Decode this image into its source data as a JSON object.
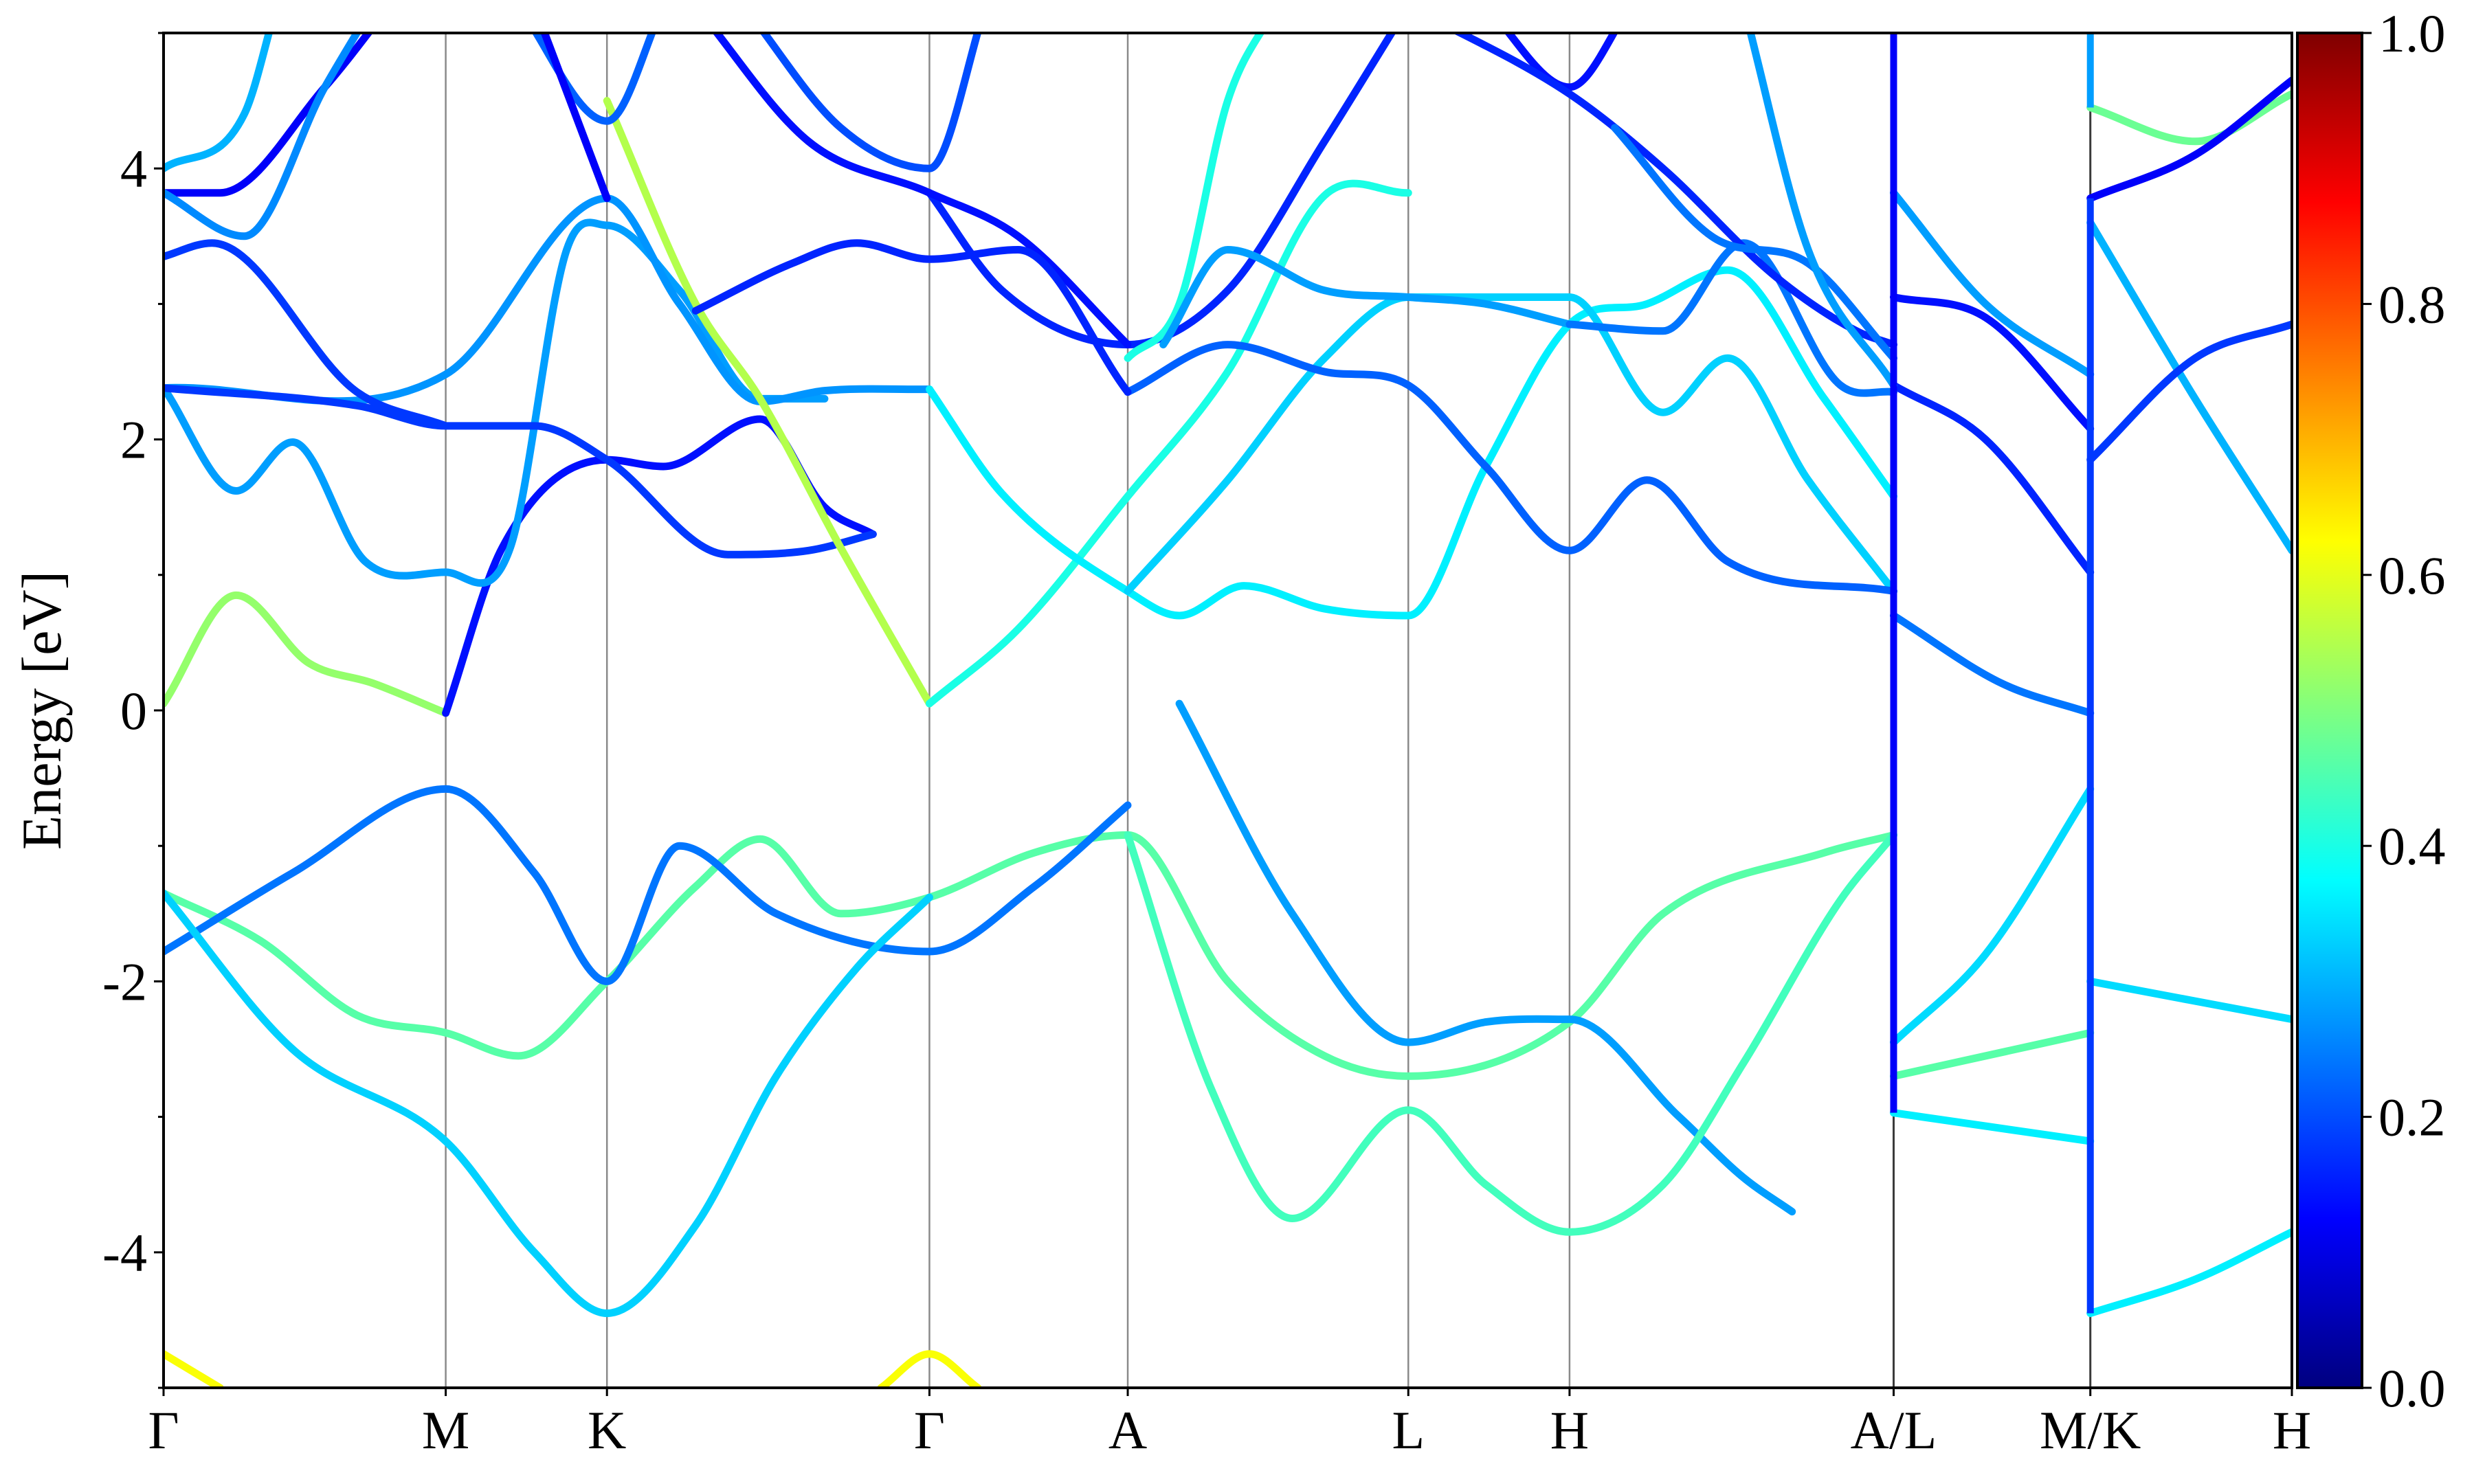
{
  "chart_data": {
    "type": "line",
    "title": "",
    "xlabel": "",
    "ylabel": "Energy [eV]",
    "ylim": [
      -5,
      5
    ],
    "yticks": [
      -4,
      -2,
      0,
      2,
      4
    ],
    "ytick_labels": [
      "-4",
      "-2",
      "0",
      "2",
      "4"
    ],
    "x_range": [
      0,
      13.2
    ],
    "kpoints": [
      {
        "label": "Γ",
        "x": 0
      },
      {
        "label": "M",
        "x": 1.75
      },
      {
        "label": "K",
        "x": 2.75
      },
      {
        "label": "Γ",
        "x": 4.75
      },
      {
        "label": "A",
        "x": 5.98
      },
      {
        "label": "L",
        "x": 7.72
      },
      {
        "label": "H",
        "x": 8.72
      },
      {
        "label": "A/L",
        "x": 10.73
      },
      {
        "label": "M/K",
        "x": 11.95
      },
      {
        "label": "H",
        "x": 13.2
      }
    ],
    "grid": "vertical lines at high-symmetry points",
    "colorbar": {
      "range": [
        0,
        1
      ],
      "ticks": [
        0.0,
        0.2,
        0.4,
        0.6,
        0.8,
        1.0
      ],
      "tick_labels": [
        "0.0",
        "0.2",
        "0.4",
        "0.6",
        "0.8",
        "1.0"
      ],
      "colormap": "jet"
    },
    "bands": [
      {
        "c": 0.52,
        "pts": [
          [
            0,
            0.05
          ],
          [
            0.45,
            0.85
          ],
          [
            0.9,
            0.35
          ],
          [
            1.3,
            0.2
          ],
          [
            1.75,
            -0.02
          ]
        ]
      },
      {
        "c": 0.14,
        "pts": [
          [
            1.75,
            -0.02
          ],
          [
            2.1,
            1.2
          ],
          [
            2.75,
            1.85
          ],
          [
            3.1,
            1.8
          ],
          [
            3.7,
            2.15
          ],
          [
            4.1,
            1.5
          ],
          [
            4.4,
            1.3
          ]
        ]
      },
      {
        "c": 0.28,
        "pts": [
          [
            0,
            2.38
          ],
          [
            0.45,
            1.62
          ],
          [
            0.8,
            1.98
          ],
          [
            1.25,
            1.1
          ],
          [
            1.75,
            1.02
          ],
          [
            2.15,
            1.2
          ],
          [
            2.5,
            3.4
          ],
          [
            2.75,
            3.58
          ],
          [
            3.2,
            3.1
          ],
          [
            3.7,
            2.3
          ],
          [
            4.1,
            2.3
          ]
        ]
      },
      {
        "c": 0.27,
        "pts": [
          [
            0,
            2.38
          ],
          [
            1.75,
            2.48
          ],
          [
            2.75,
            3.78
          ],
          [
            3.2,
            3.0
          ],
          [
            3.7,
            2.28
          ],
          [
            4.1,
            2.36
          ],
          [
            4.75,
            2.37
          ]
        ]
      },
      {
        "c": 0.18,
        "pts": [
          [
            0,
            2.38
          ],
          [
            1.2,
            2.25
          ],
          [
            1.75,
            2.1
          ],
          [
            2.3,
            2.1
          ],
          [
            2.75,
            1.85
          ],
          [
            3.5,
            1.15
          ],
          [
            4.0,
            1.18
          ],
          [
            4.4,
            1.3
          ]
        ]
      },
      {
        "c": 0.55,
        "pts": [
          [
            2.75,
            4.5
          ],
          [
            3.3,
            3.0
          ],
          [
            3.7,
            2.3
          ],
          [
            4.2,
            1.2
          ],
          [
            4.75,
            0.05
          ]
        ]
      },
      {
        "c": 0.4,
        "pts": [
          [
            4.75,
            0.05
          ],
          [
            5.3,
            0.6
          ],
          [
            5.98,
            1.58
          ],
          [
            6.6,
            2.5
          ],
          [
            7.2,
            3.8
          ],
          [
            7.72,
            3.82
          ]
        ]
      },
      {
        "c": 0.36,
        "pts": [
          [
            4.75,
            2.37
          ],
          [
            5.2,
            1.6
          ],
          [
            5.98,
            0.88
          ],
          [
            6.3,
            0.7
          ],
          [
            6.7,
            0.92
          ],
          [
            7.2,
            0.75
          ],
          [
            7.72,
            0.7
          ],
          [
            8.2,
            1.8
          ],
          [
            8.72,
            2.85
          ],
          [
            9.2,
            3.0
          ],
          [
            9.7,
            3.25
          ],
          [
            10.3,
            2.3
          ],
          [
            10.73,
            1.58
          ]
        ]
      },
      {
        "c": 0.33,
        "pts": [
          [
            5.98,
            0.88
          ],
          [
            6.6,
            1.7
          ],
          [
            7.2,
            2.6
          ],
          [
            7.72,
            3.05
          ],
          [
            8.72,
            3.05
          ],
          [
            9.3,
            2.2
          ],
          [
            9.7,
            2.6
          ],
          [
            10.2,
            1.7
          ],
          [
            10.73,
            0.88
          ]
        ]
      },
      {
        "c": 0.16,
        "pts": [
          [
            4.75,
            3.82
          ],
          [
            5.2,
            3.1
          ],
          [
            5.98,
            2.7
          ],
          [
            6.6,
            3.1
          ],
          [
            7.2,
            4.2
          ],
          [
            7.72,
            5.2
          ]
        ]
      },
      {
        "c": 0.22,
        "pts": [
          [
            5.98,
            2.35
          ],
          [
            6.6,
            2.7
          ],
          [
            7.2,
            2.5
          ],
          [
            7.72,
            2.4
          ],
          [
            8.2,
            1.8
          ],
          [
            8.72,
            1.18
          ],
          [
            9.2,
            1.7
          ],
          [
            9.7,
            1.1
          ],
          [
            10.73,
            0.88
          ]
        ]
      },
      {
        "c": 0.46,
        "pts": [
          [
            0,
            -1.35
          ],
          [
            0.6,
            -1.7
          ],
          [
            1.2,
            -2.25
          ],
          [
            1.75,
            -2.38
          ],
          [
            2.2,
            -2.55
          ],
          [
            2.75,
            -2.0
          ],
          [
            3.3,
            -1.3
          ],
          [
            3.7,
            -0.95
          ],
          [
            4.2,
            -1.5
          ],
          [
            4.75,
            -1.38
          ],
          [
            5.4,
            -1.05
          ],
          [
            5.98,
            -0.92
          ],
          [
            6.6,
            -2.0
          ],
          [
            7.2,
            -2.55
          ],
          [
            7.72,
            -2.7
          ],
          [
            8.72,
            -2.3
          ],
          [
            9.3,
            -1.5
          ],
          [
            10.3,
            -1.05
          ],
          [
            10.73,
            -0.92
          ]
        ]
      },
      {
        "c": 0.24,
        "pts": [
          [
            0,
            -1.78
          ],
          [
            0.8,
            -1.2
          ],
          [
            1.75,
            -0.58
          ],
          [
            2.3,
            -1.2
          ],
          [
            2.75,
            -2.0
          ],
          [
            3.2,
            -1.0
          ],
          [
            3.8,
            -1.5
          ],
          [
            4.75,
            -1.78
          ],
          [
            5.4,
            -1.3
          ],
          [
            5.98,
            -0.7
          ]
        ]
      },
      {
        "c": 0.33,
        "pts": [
          [
            0,
            -1.35
          ],
          [
            0.8,
            -2.5
          ],
          [
            1.75,
            -3.18
          ],
          [
            2.3,
            -4.0
          ],
          [
            2.75,
            -4.45
          ],
          [
            3.3,
            -3.8
          ],
          [
            3.8,
            -2.7
          ],
          [
            4.3,
            -1.9
          ],
          [
            4.75,
            -1.38
          ]
        ]
      },
      {
        "c": 0.28,
        "pts": [
          [
            6.3,
            0.05
          ],
          [
            7.0,
            -1.5
          ],
          [
            7.72,
            -2.45
          ],
          [
            8.2,
            -2.3
          ],
          [
            8.72,
            -2.28
          ],
          [
            9.4,
            -3.0
          ],
          [
            9.8,
            -3.45
          ],
          [
            10.1,
            -3.7
          ]
        ]
      },
      {
        "c": 0.44,
        "pts": [
          [
            5.98,
            -0.92
          ],
          [
            6.5,
            -2.8
          ],
          [
            7.0,
            -3.75
          ],
          [
            7.72,
            -2.95
          ],
          [
            8.2,
            -3.5
          ],
          [
            8.72,
            -3.85
          ],
          [
            9.3,
            -3.5
          ],
          [
            9.8,
            -2.6
          ],
          [
            10.4,
            -1.4
          ],
          [
            10.73,
            -0.92
          ]
        ]
      },
      {
        "c": 0.62,
        "pts": [
          [
            0,
            -4.75
          ],
          [
            0.35,
            -5.0
          ]
        ]
      },
      {
        "c": 0.62,
        "pts": [
          [
            4.45,
            -5.0
          ],
          [
            4.75,
            -4.75
          ],
          [
            5.05,
            -5.0
          ]
        ]
      },
      {
        "c": 0.34,
        "pts": [
          [
            10.73,
            -2.45
          ],
          [
            11.3,
            -1.8
          ],
          [
            11.95,
            -0.58
          ]
        ]
      },
      {
        "c": 0.46,
        "pts": [
          [
            10.73,
            -2.7
          ],
          [
            11.95,
            -2.38
          ]
        ]
      },
      {
        "c": 0.36,
        "pts": [
          [
            10.73,
            -2.97
          ],
          [
            11.95,
            -3.18
          ]
        ]
      },
      {
        "c": 0.34,
        "pts": [
          [
            11.95,
            -2.0
          ],
          [
            13.2,
            -2.28
          ]
        ]
      },
      {
        "c": 0.36,
        "pts": [
          [
            11.95,
            -4.45
          ],
          [
            12.6,
            -4.2
          ],
          [
            13.2,
            -3.85
          ]
        ]
      },
      {
        "c": 0.24,
        "pts": [
          [
            10.73,
            0.7
          ],
          [
            11.4,
            0.2
          ],
          [
            11.95,
            -0.02
          ]
        ]
      },
      {
        "c": 0.16,
        "pts": [
          [
            10.73,
            2.4
          ],
          [
            11.3,
            2.0
          ],
          [
            11.95,
            1.02
          ]
        ]
      },
      {
        "c": 0.28,
        "pts": [
          [
            10.73,
            3.82
          ],
          [
            11.3,
            3.0
          ],
          [
            11.95,
            2.48
          ]
        ]
      },
      {
        "c": 0.3,
        "pts": [
          [
            11.95,
            3.6
          ],
          [
            12.6,
            2.3
          ],
          [
            13.2,
            1.18
          ]
        ]
      },
      {
        "c": 0.18,
        "pts": [
          [
            11.95,
            1.85
          ],
          [
            12.6,
            2.6
          ],
          [
            13.2,
            2.85
          ]
        ]
      },
      {
        "c": 0.48,
        "pts": [
          [
            11.95,
            4.45
          ],
          [
            12.6,
            4.2
          ],
          [
            13.2,
            4.55
          ]
        ]
      },
      {
        "c": 0.12,
        "pts": [
          [
            11.95,
            3.78
          ],
          [
            12.6,
            4.1
          ],
          [
            13.2,
            4.65
          ]
        ]
      },
      {
        "c": 0.14,
        "pts": [
          [
            10.73,
            3.05
          ],
          [
            11.3,
            2.9
          ],
          [
            11.95,
            2.08
          ]
        ]
      },
      {
        "c": 0.18,
        "pts": [
          [
            0,
            3.35
          ],
          [
            0.3,
            3.45
          ],
          [
            1.2,
            2.35
          ],
          [
            1.75,
            2.1
          ]
        ]
      },
      {
        "c": 0.12,
        "pts": [
          [
            0,
            3.82
          ],
          [
            0.35,
            3.82
          ],
          [
            1.0,
            4.6
          ],
          [
            1.4,
            5.2
          ]
        ]
      },
      {
        "c": 0.3,
        "pts": [
          [
            0,
            4.0
          ],
          [
            0.5,
            4.4
          ],
          [
            0.7,
            5.2
          ]
        ]
      },
      {
        "c": 0.26,
        "pts": [
          [
            0,
            3.82
          ],
          [
            0.5,
            3.5
          ],
          [
            1.0,
            4.6
          ],
          [
            1.3,
            5.2
          ]
        ]
      },
      {
        "c": 0.22,
        "pts": [
          [
            2.2,
            5.2
          ],
          [
            2.75,
            4.35
          ],
          [
            3.1,
            5.2
          ]
        ]
      },
      {
        "c": 0.12,
        "pts": [
          [
            2.3,
            5.2
          ],
          [
            2.75,
            3.78
          ]
        ]
      },
      {
        "c": 0.2,
        "pts": [
          [
            3.6,
            5.2
          ],
          [
            4.2,
            4.3
          ],
          [
            4.75,
            4.0
          ],
          [
            5.1,
            5.2
          ]
        ]
      },
      {
        "c": 0.14,
        "pts": [
          [
            3.3,
            5.2
          ],
          [
            4.0,
            4.2
          ],
          [
            4.75,
            3.82
          ],
          [
            5.3,
            3.5
          ],
          [
            5.98,
            2.7
          ]
        ]
      },
      {
        "c": 0.16,
        "pts": [
          [
            3.3,
            2.95
          ],
          [
            3.9,
            3.3
          ],
          [
            4.3,
            3.45
          ],
          [
            4.75,
            3.33
          ],
          [
            5.3,
            3.4
          ],
          [
            5.98,
            2.35
          ]
        ]
      },
      {
        "c": 0.4,
        "pts": [
          [
            5.98,
            2.6
          ],
          [
            6.3,
            3.0
          ],
          [
            6.6,
            4.5
          ],
          [
            6.9,
            5.2
          ]
        ]
      },
      {
        "c": 0.28,
        "pts": [
          [
            6.2,
            2.7
          ],
          [
            6.6,
            3.4
          ],
          [
            7.2,
            3.1
          ],
          [
            7.72,
            3.05
          ],
          [
            8.2,
            3.0
          ],
          [
            8.72,
            2.85
          ]
        ]
      },
      {
        "c": 0.24,
        "pts": [
          [
            8.72,
            2.85
          ],
          [
            9.3,
            2.8
          ],
          [
            9.8,
            3.45
          ],
          [
            10.4,
            2.4
          ],
          [
            10.73,
            2.35
          ]
        ]
      },
      {
        "c": 0.14,
        "pts": [
          [
            8.2,
            5.2
          ],
          [
            8.72,
            4.6
          ],
          [
            9.1,
            5.2
          ]
        ]
      },
      {
        "c": 0.16,
        "pts": [
          [
            7.72,
            5.2
          ],
          [
            8.72,
            4.55
          ],
          [
            9.3,
            4.0
          ],
          [
            10.0,
            3.2
          ],
          [
            10.5,
            2.8
          ],
          [
            10.73,
            2.7
          ]
        ]
      },
      {
        "c": 0.24,
        "pts": [
          [
            9.0,
            4.3
          ],
          [
            9.6,
            3.5
          ],
          [
            10.2,
            3.3
          ],
          [
            10.73,
            2.6
          ]
        ]
      },
      {
        "c": 0.28,
        "pts": [
          [
            9.8,
            5.2
          ],
          [
            10.2,
            3.4
          ],
          [
            10.73,
            2.4
          ]
        ]
      }
    ]
  }
}
